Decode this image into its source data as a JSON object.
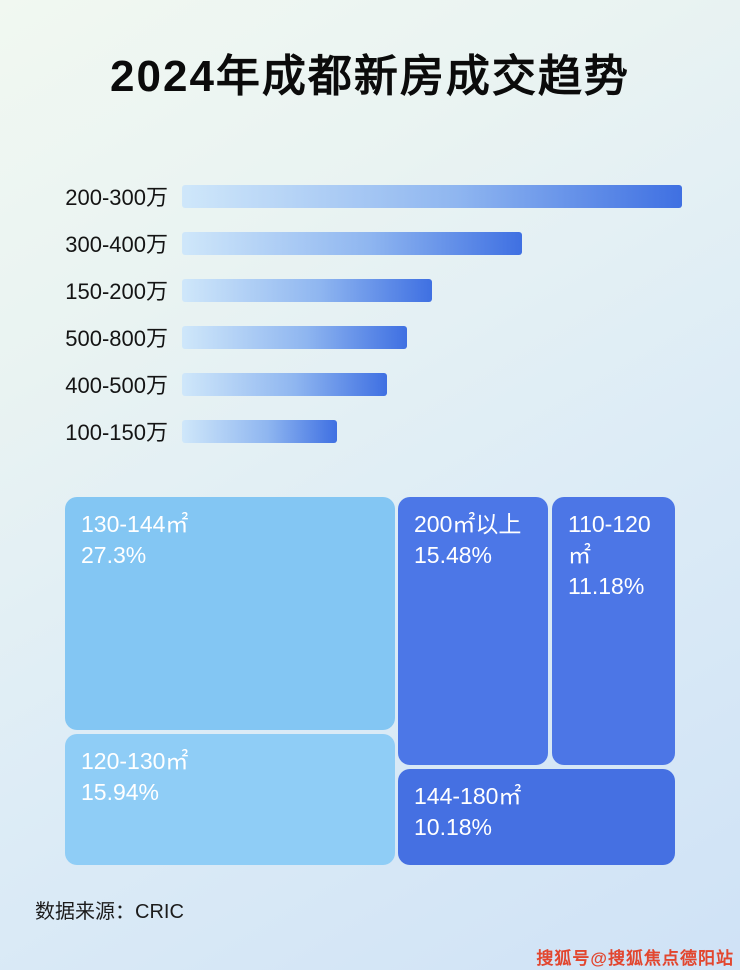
{
  "title": "2024年成都新房成交趋势",
  "source": "数据来源：CRIC",
  "watermark": "搜狐号@搜狐焦点德阳站",
  "chart_data": [
    {
      "type": "bar",
      "orientation": "horizontal",
      "title": "2024年成都新房成交趋势",
      "categories": [
        "200-300万",
        "300-400万",
        "150-200万",
        "500-800万",
        "400-500万",
        "100-150万"
      ],
      "values": [
        100,
        68,
        50,
        45,
        41,
        31
      ],
      "values_unit": "relative bar length, % of longest bar (no numeric axis shown)",
      "grid": false,
      "legend": false
    },
    {
      "type": "treemap",
      "items": [
        {
          "label": "130-144㎡",
          "value": 27.3,
          "value_label": "27.3%"
        },
        {
          "label": "120-130㎡",
          "value": 15.94,
          "value_label": "15.94%"
        },
        {
          "label": "200㎡以上",
          "value": 15.48,
          "value_label": "15.48%"
        },
        {
          "label": "110-120㎡",
          "value": 11.18,
          "value_label": "11.18%"
        },
        {
          "label": "144-180㎡",
          "value": 10.18,
          "value_label": "10.18%"
        }
      ]
    }
  ]
}
